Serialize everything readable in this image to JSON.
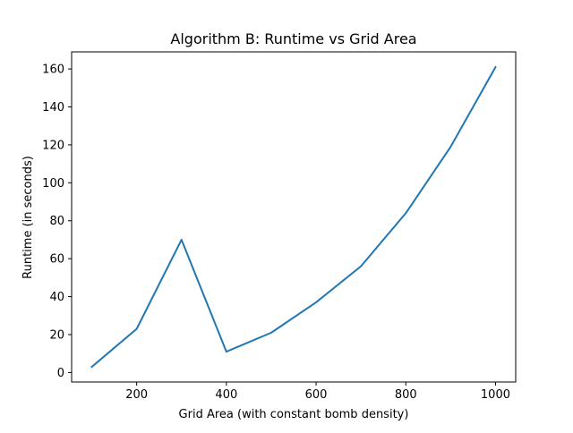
{
  "chart_data": {
    "type": "line",
    "title": "Algorithm B: Runtime vs Grid Area",
    "xlabel": "Grid Area (with constant bomb density)",
    "ylabel": "Runtime (in seconds)",
    "xlim": [
      55,
      1045
    ],
    "ylim": [
      -5.0,
      169.0
    ],
    "xticks": [
      200,
      400,
      600,
      800,
      1000
    ],
    "yticks": [
      0,
      20,
      40,
      60,
      80,
      100,
      120,
      140,
      160
    ],
    "grid": false,
    "legend": "none",
    "series": [
      {
        "color": "#1f77b4",
        "x": [
          100,
          200,
          300,
          400,
          500,
          600,
          700,
          800,
          900,
          1000
        ],
        "y": [
          3,
          23,
          70,
          11,
          21,
          37,
          56,
          84,
          119,
          161
        ]
      }
    ]
  }
}
